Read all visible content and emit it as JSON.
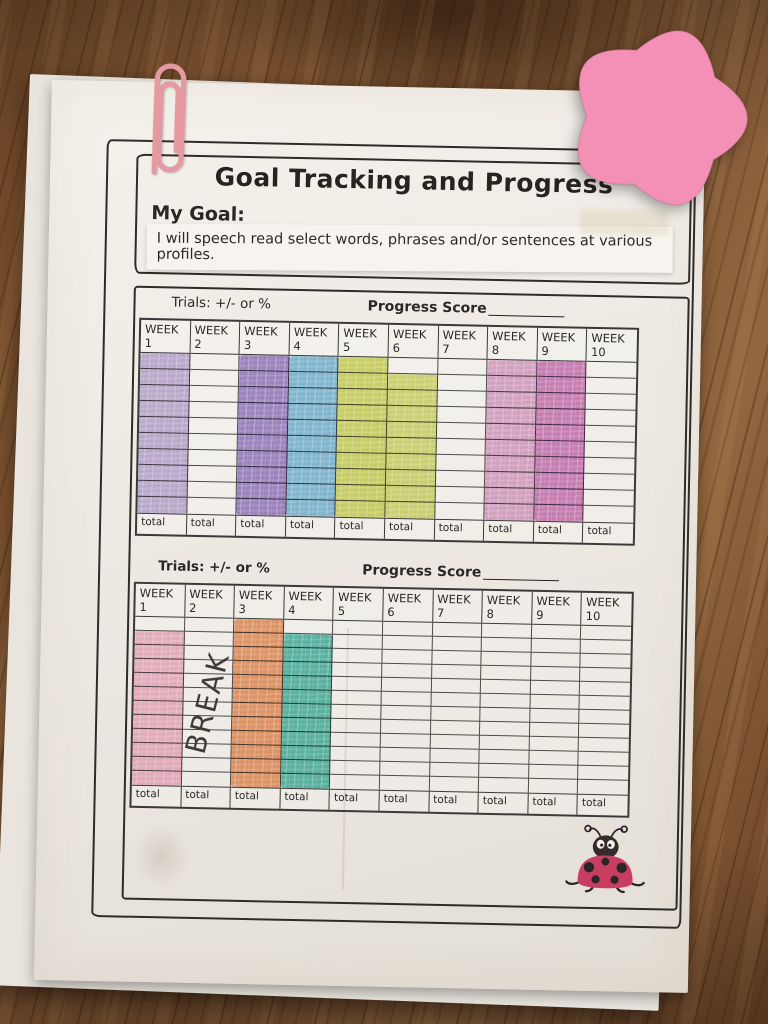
{
  "scene": {
    "desk_wood_color": "#7a5132",
    "sticky_note": {
      "shape": "star",
      "color": "#f48fb6"
    },
    "paper_clip": {
      "color": "#e59aa2"
    }
  },
  "paper": {
    "title": "Goal Tracking and Progress",
    "my_goal_label": "My Goal:",
    "goal_text": "I will speech read select words, phrases and/or sentences at various profiles.",
    "sections": [
      {
        "trials_label": "Trials: +/- or %",
        "progress_label": "Progress Score",
        "rows": 10,
        "weeks": [
          {
            "label": "WEEK",
            "num": "1"
          },
          {
            "label": "WEEK",
            "num": "2"
          },
          {
            "label": "WEEK",
            "num": "3"
          },
          {
            "label": "WEEK",
            "num": "4"
          },
          {
            "label": "WEEK",
            "num": "5"
          },
          {
            "label": "WEEK",
            "num": "6"
          },
          {
            "label": "WEEK",
            "num": "7"
          },
          {
            "label": "WEEK",
            "num": "8"
          },
          {
            "label": "WEEK",
            "num": "9"
          },
          {
            "label": "WEEK",
            "num": "10"
          }
        ],
        "total_label": "total",
        "fills": [
          {
            "week": 1,
            "color": "#c0aede",
            "row_start": 1,
            "row_end": 10
          },
          {
            "week": 3,
            "color": "#9a7ecc",
            "row_start": 1,
            "row_end": 10
          },
          {
            "week": 4,
            "color": "#79bde4",
            "row_start": 1,
            "row_end": 10
          },
          {
            "week": 5,
            "color": "#d2dc5e",
            "row_start": 1,
            "row_end": 10
          },
          {
            "week": 6,
            "color": "#d6df6c",
            "row_start": 2,
            "row_end": 10
          },
          {
            "week": 8,
            "color": "#e0a6d0",
            "row_start": 1,
            "row_end": 10
          },
          {
            "week": 9,
            "color": "#d077bf",
            "row_start": 1,
            "row_end": 10
          }
        ]
      },
      {
        "trials_label": "Trials: +/- or %",
        "progress_label": "Progress Score",
        "rows": 12,
        "weeks": [
          {
            "label": "WEEK",
            "num": "1"
          },
          {
            "label": "WEEK",
            "num": "2"
          },
          {
            "label": "WEEK",
            "num": "3"
          },
          {
            "label": "WEEK",
            "num": "4"
          },
          {
            "label": "WEEK",
            "num": "5"
          },
          {
            "label": "WEEK",
            "num": "6"
          },
          {
            "label": "WEEK",
            "num": "7"
          },
          {
            "label": "WEEK",
            "num": "8"
          },
          {
            "label": "WEEK",
            "num": "9"
          },
          {
            "label": "WEEK",
            "num": "10"
          }
        ],
        "total_label": "total",
        "fills": [
          {
            "week": 1,
            "color": "#f5b4cd",
            "row_start": 2,
            "row_end": 12
          },
          {
            "week": 3,
            "color": "#f0955e",
            "row_start": 1,
            "row_end": 12
          },
          {
            "week": 4,
            "color": "#49bcab",
            "row_start": 2,
            "row_end": 12
          }
        ],
        "annotation": {
          "week": 2,
          "text": "BREAK"
        }
      }
    ]
  }
}
